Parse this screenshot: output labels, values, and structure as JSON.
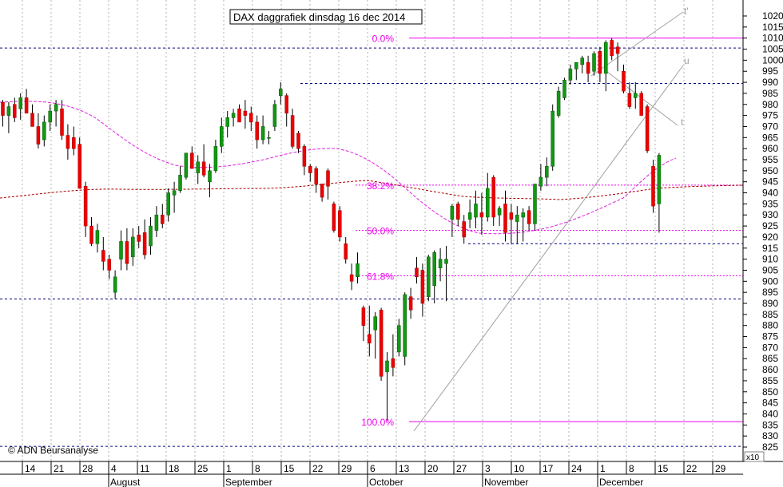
{
  "chart_data": {
    "type": "candlestick",
    "title": "DAX daggrafiek dinsdag 16 dec 2014",
    "copyright": "© ADN Beursanalyse",
    "y_multiplier_label": "x10",
    "ylim": [
      825,
      1020
    ],
    "y_ticks": [
      825,
      830,
      835,
      840,
      845,
      850,
      855,
      860,
      865,
      870,
      875,
      880,
      885,
      890,
      895,
      900,
      905,
      910,
      915,
      920,
      925,
      930,
      935,
      940,
      945,
      950,
      955,
      960,
      965,
      970,
      975,
      980,
      985,
      990,
      995,
      1000,
      1005,
      1010,
      1015,
      1020
    ],
    "x_tick_labels": [
      "14",
      "21",
      "28",
      "4",
      "11",
      "18",
      "25",
      "1",
      "8",
      "15",
      "22",
      "29",
      "6",
      "13",
      "20",
      "27",
      "3",
      "10",
      "17",
      "24",
      "1",
      "8",
      "15",
      "22",
      "29"
    ],
    "month_labels": [
      "August",
      "September",
      "October",
      "November",
      "December"
    ],
    "colors": {
      "up_candle": "#119911",
      "down_candle": "#ee0000",
      "fib_lines": "#ee00ee",
      "support_lines": "#000080",
      "ma_short": "#dd22dd",
      "ma_long": "#aa0000",
      "trendlines": "#a0a0a0",
      "grid": "#b0b0b0"
    },
    "fibonacci": [
      {
        "label": "0.0%",
        "value": 1010
      },
      {
        "label": "38.2%",
        "value": 943.5
      },
      {
        "label": "50.0%",
        "value": 923
      },
      {
        "label": "61.8%",
        "value": 902.5
      },
      {
        "label": "100.0%",
        "value": 836.5
      }
    ],
    "horizontal_levels": [
      1005.5,
      989.5,
      917,
      892,
      825.3
    ],
    "trendline_labels": [
      "t'",
      "u",
      "t"
    ],
    "candles": [
      {
        "o": 981,
        "h": 982,
        "l": 970,
        "c": 975
      },
      {
        "o": 975,
        "h": 981,
        "l": 967,
        "c": 979
      },
      {
        "o": 980,
        "h": 983,
        "l": 972,
        "c": 974
      },
      {
        "o": 978,
        "h": 985,
        "l": 973,
        "c": 983
      },
      {
        "o": 983,
        "h": 987,
        "l": 976,
        "c": 976
      },
      {
        "o": 976,
        "h": 980,
        "l": 970,
        "c": 970
      },
      {
        "o": 970,
        "h": 976,
        "l": 960,
        "c": 962
      },
      {
        "o": 964,
        "h": 975,
        "l": 961,
        "c": 972
      },
      {
        "o": 972,
        "h": 980,
        "l": 968,
        "c": 977
      },
      {
        "o": 977,
        "h": 982,
        "l": 970,
        "c": 980
      },
      {
        "o": 978,
        "h": 982,
        "l": 964,
        "c": 966
      },
      {
        "o": 966,
        "h": 971,
        "l": 955,
        "c": 960
      },
      {
        "o": 965,
        "h": 970,
        "l": 957,
        "c": 960
      },
      {
        "o": 962,
        "h": 965,
        "l": 942,
        "c": 942
      },
      {
        "o": 943,
        "h": 945,
        "l": 920,
        "c": 925
      },
      {
        "o": 925,
        "h": 929,
        "l": 916,
        "c": 917
      },
      {
        "o": 917,
        "h": 926,
        "l": 913,
        "c": 923
      },
      {
        "o": 914,
        "h": 920,
        "l": 905,
        "c": 909
      },
      {
        "o": 910,
        "h": 912,
        "l": 901,
        "c": 905
      },
      {
        "o": 895,
        "h": 905,
        "l": 892,
        "c": 902
      },
      {
        "o": 910,
        "h": 923,
        "l": 905,
        "c": 918
      },
      {
        "o": 918,
        "h": 924,
        "l": 905,
        "c": 908
      },
      {
        "o": 911,
        "h": 924,
        "l": 907,
        "c": 920
      },
      {
        "o": 921,
        "h": 925,
        "l": 915,
        "c": 918
      },
      {
        "o": 922,
        "h": 928,
        "l": 910,
        "c": 912
      },
      {
        "o": 916,
        "h": 929,
        "l": 912,
        "c": 925
      },
      {
        "o": 923,
        "h": 934,
        "l": 920,
        "c": 930
      },
      {
        "o": 930,
        "h": 935,
        "l": 924,
        "c": 926
      },
      {
        "o": 930,
        "h": 942,
        "l": 927,
        "c": 940
      },
      {
        "o": 939,
        "h": 945,
        "l": 931,
        "c": 941
      },
      {
        "o": 941,
        "h": 952,
        "l": 940,
        "c": 948
      },
      {
        "o": 947,
        "h": 958,
        "l": 946,
        "c": 958
      },
      {
        "o": 958,
        "h": 961,
        "l": 951,
        "c": 951
      },
      {
        "o": 949,
        "h": 957,
        "l": 944,
        "c": 954
      },
      {
        "o": 954,
        "h": 962,
        "l": 947,
        "c": 948
      },
      {
        "o": 945,
        "h": 953,
        "l": 938,
        "c": 950
      },
      {
        "o": 950,
        "h": 964,
        "l": 949,
        "c": 961
      },
      {
        "o": 961,
        "h": 974,
        "l": 958,
        "c": 970
      },
      {
        "o": 970,
        "h": 977,
        "l": 965,
        "c": 974
      },
      {
        "o": 974,
        "h": 978,
        "l": 970,
        "c": 976
      },
      {
        "o": 978,
        "h": 980,
        "l": 972,
        "c": 972
      },
      {
        "o": 977,
        "h": 982,
        "l": 969,
        "c": 975
      },
      {
        "o": 976,
        "h": 979,
        "l": 968,
        "c": 972
      },
      {
        "o": 972,
        "h": 975,
        "l": 960,
        "c": 964
      },
      {
        "o": 964,
        "h": 975,
        "l": 962,
        "c": 970
      },
      {
        "o": 965,
        "h": 968,
        "l": 962,
        "c": 965
      },
      {
        "o": 970,
        "h": 982,
        "l": 968,
        "c": 980
      },
      {
        "o": 984,
        "h": 990,
        "l": 980,
        "c": 987
      },
      {
        "o": 984,
        "h": 985,
        "l": 970,
        "c": 976
      },
      {
        "o": 975,
        "h": 978,
        "l": 960,
        "c": 961
      },
      {
        "o": 967,
        "h": 968,
        "l": 958,
        "c": 960
      },
      {
        "o": 961,
        "h": 962,
        "l": 948,
        "c": 952
      },
      {
        "o": 952,
        "h": 953,
        "l": 945,
        "c": 949
      },
      {
        "o": 951,
        "h": 952,
        "l": 940,
        "c": 944
      },
      {
        "o": 944,
        "h": 944,
        "l": 936,
        "c": 938
      },
      {
        "o": 950,
        "h": 951,
        "l": 937,
        "c": 943
      },
      {
        "o": 935,
        "h": 936,
        "l": 922,
        "c": 923
      },
      {
        "o": 932,
        "h": 934,
        "l": 918,
        "c": 920
      },
      {
        "o": 917,
        "h": 920,
        "l": 908,
        "c": 910
      },
      {
        "o": 903,
        "h": 908,
        "l": 896,
        "c": 900
      },
      {
        "o": 902,
        "h": 913,
        "l": 899,
        "c": 908
      },
      {
        "o": 888,
        "h": 889,
        "l": 873,
        "c": 880
      },
      {
        "o": 876,
        "h": 889,
        "l": 866,
        "c": 872
      },
      {
        "o": 878,
        "h": 886,
        "l": 865,
        "c": 884
      },
      {
        "o": 887,
        "h": 888,
        "l": 855,
        "c": 857
      },
      {
        "o": 859,
        "h": 868,
        "l": 837,
        "c": 864
      },
      {
        "o": 865,
        "h": 876,
        "l": 857,
        "c": 861
      },
      {
        "o": 868,
        "h": 883,
        "l": 866,
        "c": 880
      },
      {
        "o": 866,
        "h": 895,
        "l": 862,
        "c": 894
      },
      {
        "o": 893,
        "h": 897,
        "l": 883,
        "c": 887
      },
      {
        "o": 906,
        "h": 911,
        "l": 899,
        "c": 902
      },
      {
        "o": 905,
        "h": 908,
        "l": 884,
        "c": 890
      },
      {
        "o": 893,
        "h": 912,
        "l": 891,
        "c": 911
      },
      {
        "o": 898,
        "h": 914,
        "l": 890,
        "c": 913
      },
      {
        "o": 906,
        "h": 915,
        "l": 900,
        "c": 910
      },
      {
        "o": 908,
        "h": 916,
        "l": 891,
        "c": 910
      },
      {
        "o": 928,
        "h": 935,
        "l": 920,
        "c": 934
      },
      {
        "o": 935,
        "h": 936,
        "l": 925,
        "c": 928
      },
      {
        "o": 927,
        "h": 930,
        "l": 917,
        "c": 920
      },
      {
        "o": 928,
        "h": 937,
        "l": 924,
        "c": 931
      },
      {
        "o": 929,
        "h": 941,
        "l": 924,
        "c": 935
      },
      {
        "o": 931,
        "h": 940,
        "l": 921,
        "c": 929
      },
      {
        "o": 929,
        "h": 949,
        "l": 927,
        "c": 942
      },
      {
        "o": 947,
        "h": 948,
        "l": 925,
        "c": 929
      },
      {
        "o": 930,
        "h": 934,
        "l": 925,
        "c": 933
      },
      {
        "o": 935,
        "h": 941,
        "l": 918,
        "c": 922
      },
      {
        "o": 931,
        "h": 935,
        "l": 917,
        "c": 928
      },
      {
        "o": 927,
        "h": 934,
        "l": 917,
        "c": 930
      },
      {
        "o": 929,
        "h": 933,
        "l": 918,
        "c": 931
      },
      {
        "o": 932,
        "h": 934,
        "l": 923,
        "c": 926
      },
      {
        "o": 926,
        "h": 944,
        "l": 923,
        "c": 944
      },
      {
        "o": 943,
        "h": 953,
        "l": 941,
        "c": 947
      },
      {
        "o": 947,
        "h": 956,
        "l": 943,
        "c": 952
      },
      {
        "o": 952,
        "h": 980,
        "l": 950,
        "c": 977
      },
      {
        "o": 975,
        "h": 988,
        "l": 974,
        "c": 986
      },
      {
        "o": 983,
        "h": 992,
        "l": 982,
        "c": 991
      },
      {
        "o": 991,
        "h": 998,
        "l": 989,
        "c": 996
      },
      {
        "o": 996,
        "h": 999,
        "l": 991,
        "c": 999
      },
      {
        "o": 998,
        "h": 1002,
        "l": 994,
        "c": 1001
      },
      {
        "o": 999,
        "h": 1002,
        "l": 990,
        "c": 994
      },
      {
        "o": 995,
        "h": 1004,
        "l": 993,
        "c": 1003
      },
      {
        "o": 1004,
        "h": 1006,
        "l": 990,
        "c": 994
      },
      {
        "o": 994,
        "h": 1009,
        "l": 986,
        "c": 1008
      },
      {
        "o": 1009,
        "h": 1010,
        "l": 1000,
        "c": 1002
      },
      {
        "o": 1006,
        "h": 1008,
        "l": 995,
        "c": 1003
      },
      {
        "o": 995,
        "h": 998,
        "l": 985,
        "c": 986
      },
      {
        "o": 985,
        "h": 990,
        "l": 978,
        "c": 979
      },
      {
        "o": 983,
        "h": 990,
        "l": 978,
        "c": 985
      },
      {
        "o": 985,
        "h": 986,
        "l": 975,
        "c": 975
      },
      {
        "o": 979,
        "h": 980,
        "l": 958,
        "c": 959
      },
      {
        "o": 952,
        "h": 955,
        "l": 931,
        "c": 934
      },
      {
        "o": 935,
        "h": 958,
        "l": 922,
        "c": 957
      }
    ]
  }
}
